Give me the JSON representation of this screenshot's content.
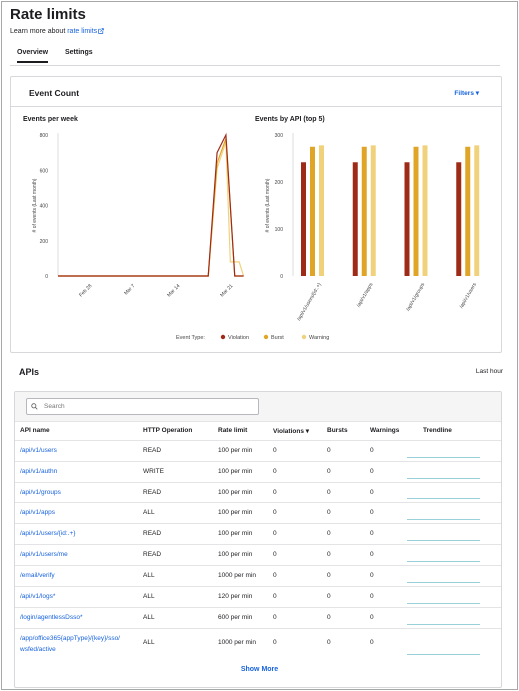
{
  "page": {
    "title": "Rate limits",
    "learn_prefix": "Learn more about",
    "learn_link": "rate limits"
  },
  "tabs": [
    {
      "label": "Overview",
      "active": true
    },
    {
      "label": "Settings",
      "active": false
    }
  ],
  "event_card": {
    "title": "Event Count",
    "filters_label": "Filters ▾"
  },
  "chart_data": [
    {
      "type": "line",
      "title": "Events per week",
      "xlabel": "",
      "ylabel": "",
      "x_ticks": [
        "Feb 28",
        "Mar 7",
        "Mar 14",
        "Mar 21"
      ],
      "ylim": [
        0,
        800
      ],
      "y_ticks": [
        "0",
        "200",
        "400",
        "600",
        "800"
      ],
      "series": [
        {
          "name": "Violation",
          "color": "#9e2b17",
          "x": [
            0,
            16,
            17,
            18,
            19,
            20,
            21
          ],
          "y": [
            0,
            0,
            0,
            700,
            800,
            0,
            0
          ]
        },
        {
          "name": "Burst",
          "color": "#e0a526",
          "x": [
            0,
            16,
            17,
            18,
            19,
            20,
            21
          ],
          "y": [
            0,
            0,
            0,
            640,
            780,
            0,
            0
          ]
        },
        {
          "name": "Warning",
          "color": "#f0d27d",
          "x": [
            0,
            16,
            17,
            18,
            19,
            19.5,
            20.5,
            21
          ],
          "y": [
            0,
            0,
            0,
            610,
            760,
            80,
            80,
            0
          ]
        }
      ]
    },
    {
      "type": "bar",
      "title": "Events by API (top 5)",
      "ylabel": "# of events (Last month)",
      "ylim": [
        0,
        300
      ],
      "y_ticks": [
        "0",
        "100",
        "200",
        "300"
      ],
      "categories": [
        "/api/v1/users/{id:.+}",
        "/api/v1/apps",
        "/api/v1/groups",
        "/api/v1/users"
      ],
      "series": [
        {
          "name": "Violation",
          "color": "#9e2b17",
          "values": [
            242,
            242,
            242,
            242
          ]
        },
        {
          "name": "Burst",
          "color": "#e0a526",
          "values": [
            275,
            275,
            275,
            275
          ]
        },
        {
          "name": "Warning",
          "color": "#f0d27d",
          "values": [
            278,
            278,
            278,
            278
          ]
        }
      ]
    }
  ],
  "line_ylabel": "# of events (Last month)",
  "legend": {
    "label": "Event Type:",
    "items": [
      {
        "name": "Violation",
        "color": "#9e2b17"
      },
      {
        "name": "Burst",
        "color": "#e0a526"
      },
      {
        "name": "Warning",
        "color": "#f0d27d"
      }
    ]
  },
  "apis": {
    "title": "APIs",
    "range": "Last hour",
    "search_placeholder": "Search",
    "headers": [
      "API name",
      "HTTP Operation",
      "Rate limit",
      "Violations ▾",
      "Bursts",
      "Warnings",
      "Trendline"
    ],
    "rows": [
      {
        "name": "/api/v1/users",
        "op": "READ",
        "limit": "100 per min",
        "violations": "0",
        "bursts": "0",
        "warnings": "0"
      },
      {
        "name": "/api/v1/authn",
        "op": "WRITE",
        "limit": "100 per min",
        "violations": "0",
        "bursts": "0",
        "warnings": "0"
      },
      {
        "name": "/api/v1/groups",
        "op": "READ",
        "limit": "100 per min",
        "violations": "0",
        "bursts": "0",
        "warnings": "0"
      },
      {
        "name": "/api/v1/apps",
        "op": "ALL",
        "limit": "100 per min",
        "violations": "0",
        "bursts": "0",
        "warnings": "0"
      },
      {
        "name": "/api/v1/users/{id:.+}",
        "op": "READ",
        "limit": "100 per min",
        "violations": "0",
        "bursts": "0",
        "warnings": "0"
      },
      {
        "name": "/api/v1/users/me",
        "op": "READ",
        "limit": "100 per min",
        "violations": "0",
        "bursts": "0",
        "warnings": "0"
      },
      {
        "name": "/email/verify",
        "op": "ALL",
        "limit": "1000 per min",
        "violations": "0",
        "bursts": "0",
        "warnings": "0"
      },
      {
        "name": "/api/v1/logs*",
        "op": "ALL",
        "limit": "120 per min",
        "violations": "0",
        "bursts": "0",
        "warnings": "0"
      },
      {
        "name": "/login/agentlessDsso*",
        "op": "ALL",
        "limit": "600 per min",
        "violations": "0",
        "bursts": "0",
        "warnings": "0"
      },
      {
        "name": "/app/office365{appType}/{key}/sso/\nwsfed/active",
        "op": "ALL",
        "limit": "1000 per min",
        "violations": "0",
        "bursts": "0",
        "warnings": "0"
      }
    ],
    "show_more": "Show More"
  }
}
